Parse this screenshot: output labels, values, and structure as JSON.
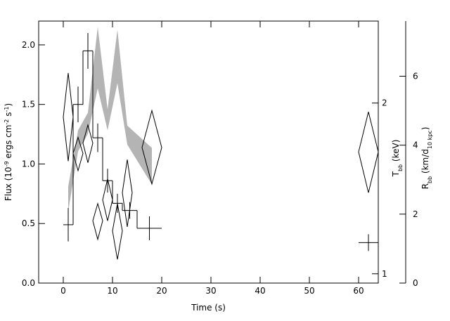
{
  "chart_data": {
    "type": "errorbar",
    "x_label": "Time (s)",
    "y_label": [
      {
        "text": "Flux (10"
      },
      {
        "text": "-9",
        "sup": true
      },
      {
        "text": " ergs cm"
      },
      {
        "text": "-2",
        "sup": true
      },
      {
        "text": " s"
      },
      {
        "text": "-1",
        "sup": true
      },
      {
        "text": ")"
      }
    ],
    "y2_label": [
      {
        "text": "T"
      },
      {
        "text": "bb",
        "sub": true
      },
      {
        "text": " (keV)"
      }
    ],
    "y3_label": [
      {
        "text": "R"
      },
      {
        "text": "bb",
        "sub": true
      },
      {
        "text": " (km/d"
      },
      {
        "text": "10 kpc",
        "sub": true
      },
      {
        "text": ")"
      }
    ],
    "xlim": [
      -5,
      64
    ],
    "xticks": [
      0,
      10,
      20,
      30,
      40,
      50,
      60
    ],
    "ylim": [
      0,
      2.2
    ],
    "yticks": [
      {
        "value": 0,
        "label": "0.0"
      },
      {
        "value": 0.5,
        "label": "0.5"
      },
      {
        "value": 1,
        "label": "1.0"
      },
      {
        "value": 1.5,
        "label": "1.5"
      },
      {
        "value": 2,
        "label": "2.0"
      }
    ],
    "y2lim": [
      0.963,
      2.79
    ],
    "y2ticks": [
      1,
      2
    ],
    "y2log": true,
    "y3lim": [
      0,
      7.6
    ],
    "y3ticks": [
      0,
      2,
      4,
      6
    ],
    "series": [
      {
        "type": "band",
        "axis": "y3",
        "color": "#b4b4b4",
        "x": [
          1,
          3,
          5,
          7,
          9,
          11,
          13,
          18
        ],
        "lower": [
          2.08,
          3.82,
          4.33,
          5.65,
          4.43,
          5.8,
          4.02,
          2.86
        ],
        "upper": [
          2.8,
          4.43,
          4.94,
          7.43,
          5.04,
          7.35,
          4.57,
          3.92
        ]
      },
      {
        "type": "steps",
        "axis": "y",
        "color": "#000000",
        "x": [
          1,
          3,
          5,
          7,
          9,
          11,
          13.5,
          17.5,
          62
        ],
        "xerr": [
          1,
          1,
          1,
          1,
          1,
          1,
          1.5,
          2.5,
          2
        ],
        "values": [
          0.49,
          1.5,
          1.95,
          1.22,
          0.86,
          0.67,
          0.61,
          0.46,
          0.34
        ],
        "errors": [
          0.14,
          0.15,
          0.15,
          0.12,
          0.1,
          0.08,
          0.07,
          0.1,
          0.07
        ]
      },
      {
        "type": "diamond",
        "axis": "y2",
        "color": "#000000",
        "x": [
          1,
          3,
          5,
          7,
          9,
          11,
          13,
          18,
          62
        ],
        "xerr": [
          1,
          1,
          1,
          1,
          1,
          1,
          1,
          2,
          2
        ],
        "values": [
          1.89,
          1.63,
          1.7,
          1.24,
          1.35,
          1.19,
          1.39,
          1.67,
          1.64
        ],
        "lower": [
          1.58,
          1.52,
          1.57,
          1.15,
          1.24,
          1.06,
          1.21,
          1.44,
          1.39
        ],
        "upper": [
          2.26,
          1.74,
          1.83,
          1.33,
          1.47,
          1.33,
          1.59,
          1.94,
          1.93
        ]
      }
    ]
  }
}
